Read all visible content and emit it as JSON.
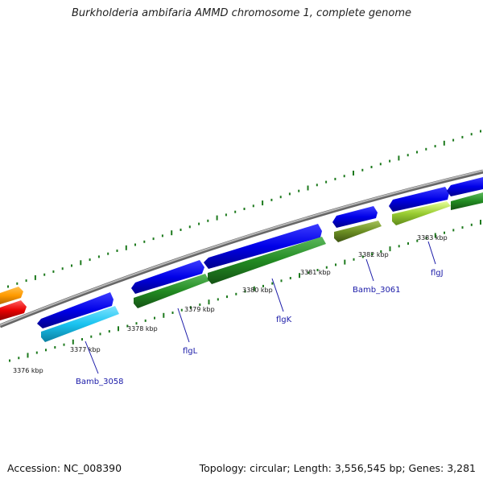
{
  "title": "Burkholderia ambifaria AMMD chromosome 1, complete genome",
  "footer": {
    "accession": "Accession: NC_008390",
    "summary": "Topology: circular; Length: 3,556,545 bp; Genes: 3,281"
  },
  "colors": {
    "backbone": "#8a8a8a",
    "ticks": "#1d7a1d",
    "label": "#1a1aa8"
  },
  "ruler": {
    "unit": "kbp",
    "marks": [
      "3376 kbp",
      "3377 kbp",
      "3378 kbp",
      "3379 kbp",
      "3380 kbp",
      "3381 kbp",
      "3382 kbp",
      "3383 kbp"
    ]
  },
  "genes": [
    {
      "label": "Bamb_3058",
      "color": "#19c3f0"
    },
    {
      "label": "flgL",
      "color": "#228b22"
    },
    {
      "label": "flgK",
      "color": "#228b22"
    },
    {
      "label": "Bamb_3061",
      "color": "#6b8e23"
    },
    {
      "label": "flgJ",
      "color": "#9acd32"
    }
  ]
}
